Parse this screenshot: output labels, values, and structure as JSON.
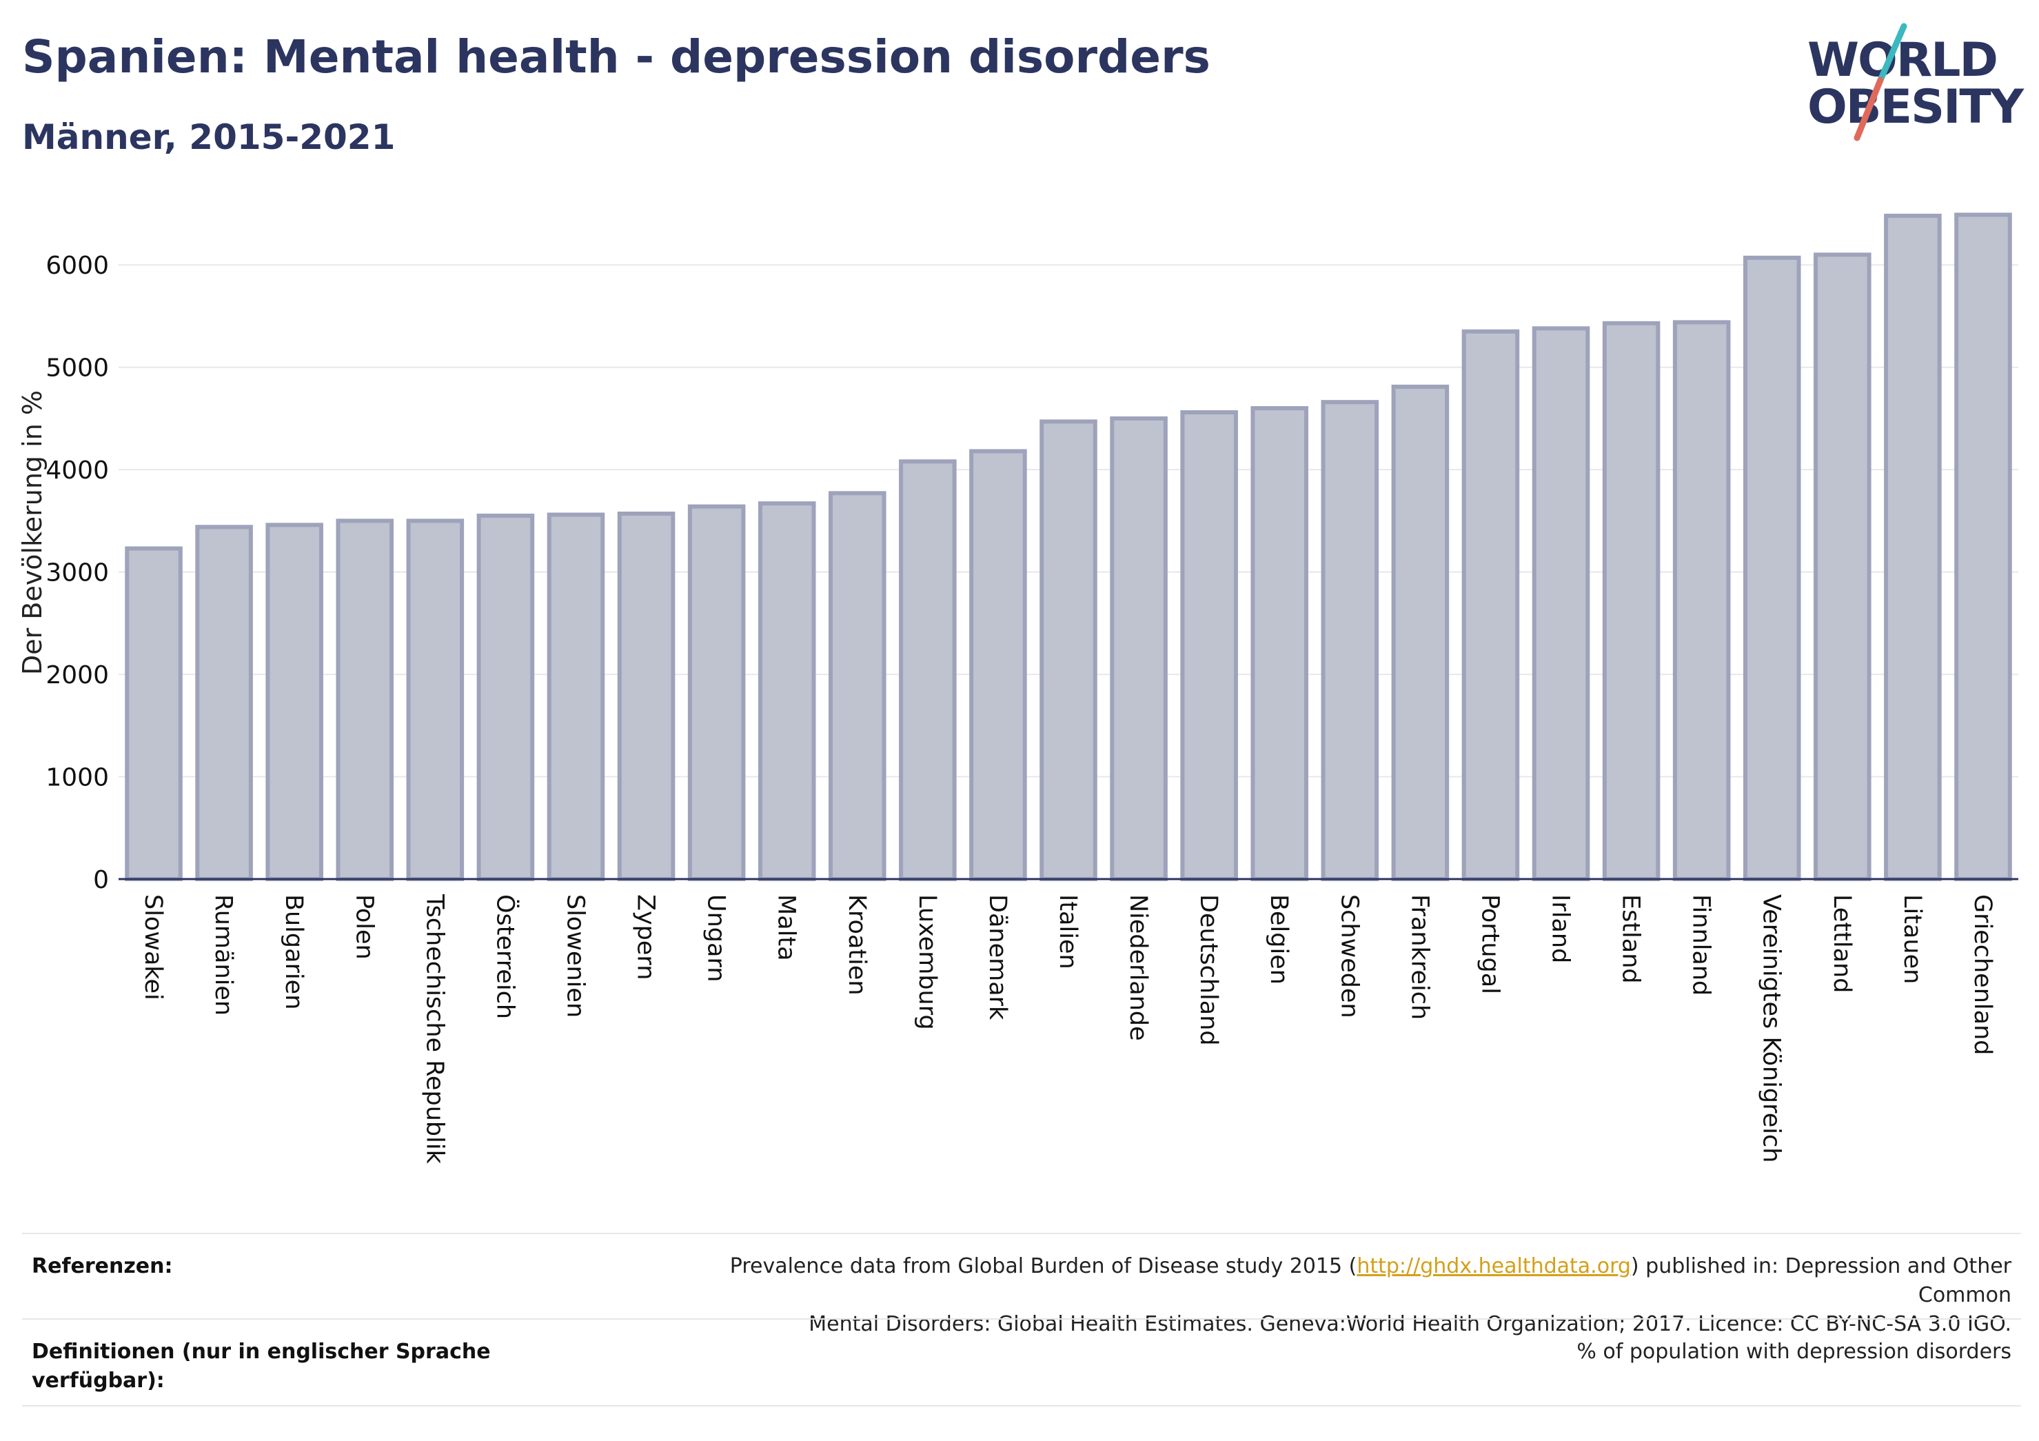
{
  "header": {
    "title": "Spanien: Mental health - depression disorders",
    "subtitle": "Männer, 2015-2021"
  },
  "logo": {
    "line1": "WORLD",
    "line2": "OBESITY",
    "colors": {
      "navy": "#2b3560",
      "teal": "#3bb8c0",
      "coral": "#e06a5a"
    }
  },
  "chart_data": {
    "type": "bar",
    "ylabel": "Der Bevölkerung in %",
    "ylim": [
      0,
      6500
    ],
    "yticks": [
      0,
      1000,
      2000,
      3000,
      4000,
      5000,
      6000
    ],
    "grid": true,
    "bar_color": "#bfc2cf",
    "bar_edge_color": "#9ea3bb",
    "categories": [
      "Slowakei",
      "Rumänien",
      "Bulgarien",
      "Polen",
      "Tschechische Republik",
      "Österreich",
      "Slowenien",
      "Zypern",
      "Ungarn",
      "Malta",
      "Kroatien",
      "Luxemburg",
      "Dänemark",
      "Italien",
      "Niederlande",
      "Deutschland",
      "Belgien",
      "Schweden",
      "Frankreich",
      "Portugal",
      "Irland",
      "Estland",
      "Finnland",
      "Vereinigtes Königreich",
      "Lettland",
      "Litauen",
      "Griechenland"
    ],
    "values": [
      3230,
      3440,
      3460,
      3500,
      3500,
      3550,
      3560,
      3570,
      3640,
      3670,
      3770,
      4080,
      4180,
      4470,
      4500,
      4560,
      4600,
      4660,
      4810,
      5350,
      5380,
      5430,
      5440,
      6070,
      6100,
      6480,
      6490
    ]
  },
  "footer": {
    "references_label": "Referenzen:",
    "references_pre": "Prevalence data from Global Burden of Disease study 2015 (",
    "references_link": "http://ghdx.healthdata.org",
    "references_post": ") published in: Depression and Other Common",
    "references_line2": "Mental Disorders: Global Health Estimates. Geneva:World Health Organization; 2017. Licence: CC BY-NC-SA 3.0 IGO.",
    "definitions_label_line1": "Definitionen (nur in englischer Sprache",
    "definitions_label_line2": "verfügbar):",
    "definitions_value": "% of population with depression disorders"
  }
}
